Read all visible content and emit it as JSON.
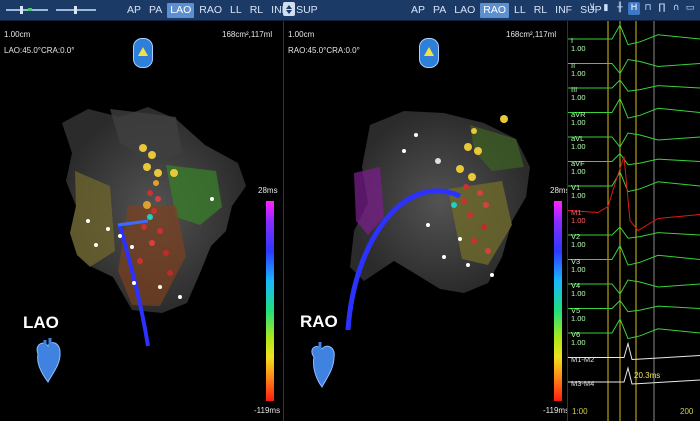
{
  "toolbar": {
    "left_views": [
      "AP",
      "PA",
      "LAO",
      "RAO",
      "LL",
      "RL",
      "INF",
      "SUP"
    ],
    "left_active": "LAO",
    "right_views": [
      "AP",
      "PA",
      "LAO",
      "RAO",
      "LL",
      "RL",
      "INF",
      "SUP"
    ],
    "right_active": "RAO",
    "scroll_icon": "scroll-icon"
  },
  "left_map": {
    "scale": "1.00cm",
    "angle": "LAO:45.0°CRA:0.0°",
    "area_volume": "168cm²,117ml",
    "view_label": "LAO",
    "cb_max": "28ms",
    "cb_min": "-119ms"
  },
  "right_map": {
    "scale": "1.00cm",
    "angle": "RAO:45.0°CRA:0.0°",
    "area_volume": "168cm²,117ml",
    "view_label": "RAO",
    "cb_max": "28ms",
    "cb_min": "-119ms"
  },
  "ecg": {
    "toolbar_icons": [
      "chart-down-icon",
      "marker-icon",
      "ruler-icon",
      "h-caliper-icon",
      "pin-icon",
      "trace-icon",
      "loop-icon",
      "box-icon"
    ],
    "active_icon": "h-caliper-icon",
    "leads": [
      {
        "name": "I",
        "gain": "1.00",
        "color": "green"
      },
      {
        "name": "II",
        "gain": "1.00",
        "color": "green"
      },
      {
        "name": "III",
        "gain": "1.00",
        "color": "green"
      },
      {
        "name": "aVR",
        "gain": "1.00",
        "color": "green"
      },
      {
        "name": "aVL",
        "gain": "1.00",
        "color": "green"
      },
      {
        "name": "aVF",
        "gain": "1.00",
        "color": "green"
      },
      {
        "name": "V1",
        "gain": "1.00",
        "color": "green"
      },
      {
        "name": "M1",
        "gain": "1.00",
        "color": "red"
      },
      {
        "name": "V2",
        "gain": "1.00",
        "color": "green"
      },
      {
        "name": "V3",
        "gain": "1.00",
        "color": "green"
      },
      {
        "name": "V4",
        "gain": "1.00",
        "color": "green"
      },
      {
        "name": "V5",
        "gain": "1.00",
        "color": "green"
      },
      {
        "name": "V6",
        "gain": "1.00",
        "color": "green"
      },
      {
        "name": "M1-M2",
        "gain": "",
        "color": "white"
      },
      {
        "name": "M3-M4",
        "gain": "",
        "color": "white"
      }
    ],
    "marker_time": "20.3ms",
    "footer_left": "1:00",
    "footer_right": "200"
  },
  "colors": {
    "toolbar_bg": "#1b3a66",
    "active_btn": "#5c8fcf",
    "ecg_green": "#39d23a",
    "ecg_red": "#e01818",
    "catheter_blue": "#2b32ff",
    "marker_yellow": "#d8c11e"
  }
}
